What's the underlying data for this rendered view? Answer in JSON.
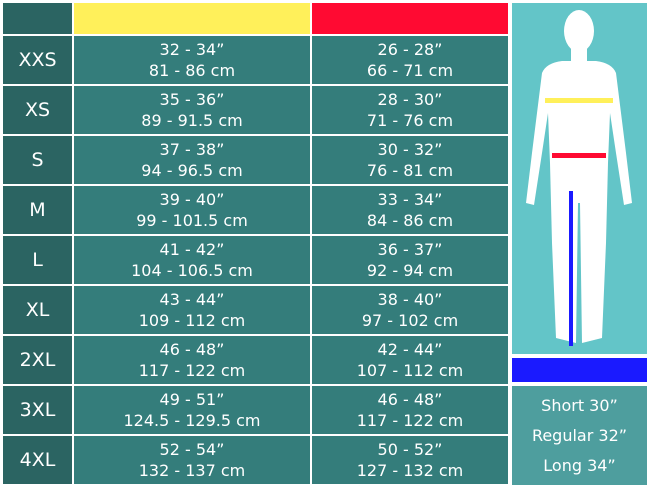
{
  "colors": {
    "chest": "#fff05a",
    "waist": "#ff0a32",
    "inseam": "#1a1aff",
    "panel": "#63c5c8"
  },
  "rows": [
    {
      "size": "XXS",
      "chest_in": "32 - 34”",
      "chest_cm": "81 - 86 cm",
      "waist_in": "26 - 28”",
      "waist_cm": "66 - 71 cm"
    },
    {
      "size": "XS",
      "chest_in": "35 - 36”",
      "chest_cm": "89 - 91.5 cm",
      "waist_in": "28 - 30”",
      "waist_cm": "71 - 76 cm"
    },
    {
      "size": "S",
      "chest_in": "37 - 38”",
      "chest_cm": "94 - 96.5 cm",
      "waist_in": "30 - 32”",
      "waist_cm": "76 - 81 cm"
    },
    {
      "size": "M",
      "chest_in": "39 - 40”",
      "chest_cm": "99 - 101.5 cm",
      "waist_in": "33 - 34”",
      "waist_cm": "84 - 86 cm"
    },
    {
      "size": "L",
      "chest_in": "41 - 42”",
      "chest_cm": "104 - 106.5 cm",
      "waist_in": "36 - 37”",
      "waist_cm": "92 - 94 cm"
    },
    {
      "size": "XL",
      "chest_in": "43 - 44”",
      "chest_cm": "109 - 112 cm",
      "waist_in": "38 - 40”",
      "waist_cm": "97 - 102 cm"
    },
    {
      "size": "2XL",
      "chest_in": "46 - 48”",
      "chest_cm": "117 - 122 cm",
      "waist_in": "42 - 44”",
      "waist_cm": "107 - 112 cm"
    },
    {
      "size": "3XL",
      "chest_in": "49 - 51”",
      "chest_cm": "124.5 - 129.5 cm",
      "waist_in": "46 - 48”",
      "waist_cm": "117 - 122 cm"
    },
    {
      "size": "4XL",
      "chest_in": "52 - 54”",
      "chest_cm": "132 - 137 cm",
      "waist_in": "50 - 52”",
      "waist_cm": "127 - 132 cm"
    }
  ],
  "inseam": [
    "Short 30”",
    "Regular 32”",
    "Long 34”"
  ]
}
